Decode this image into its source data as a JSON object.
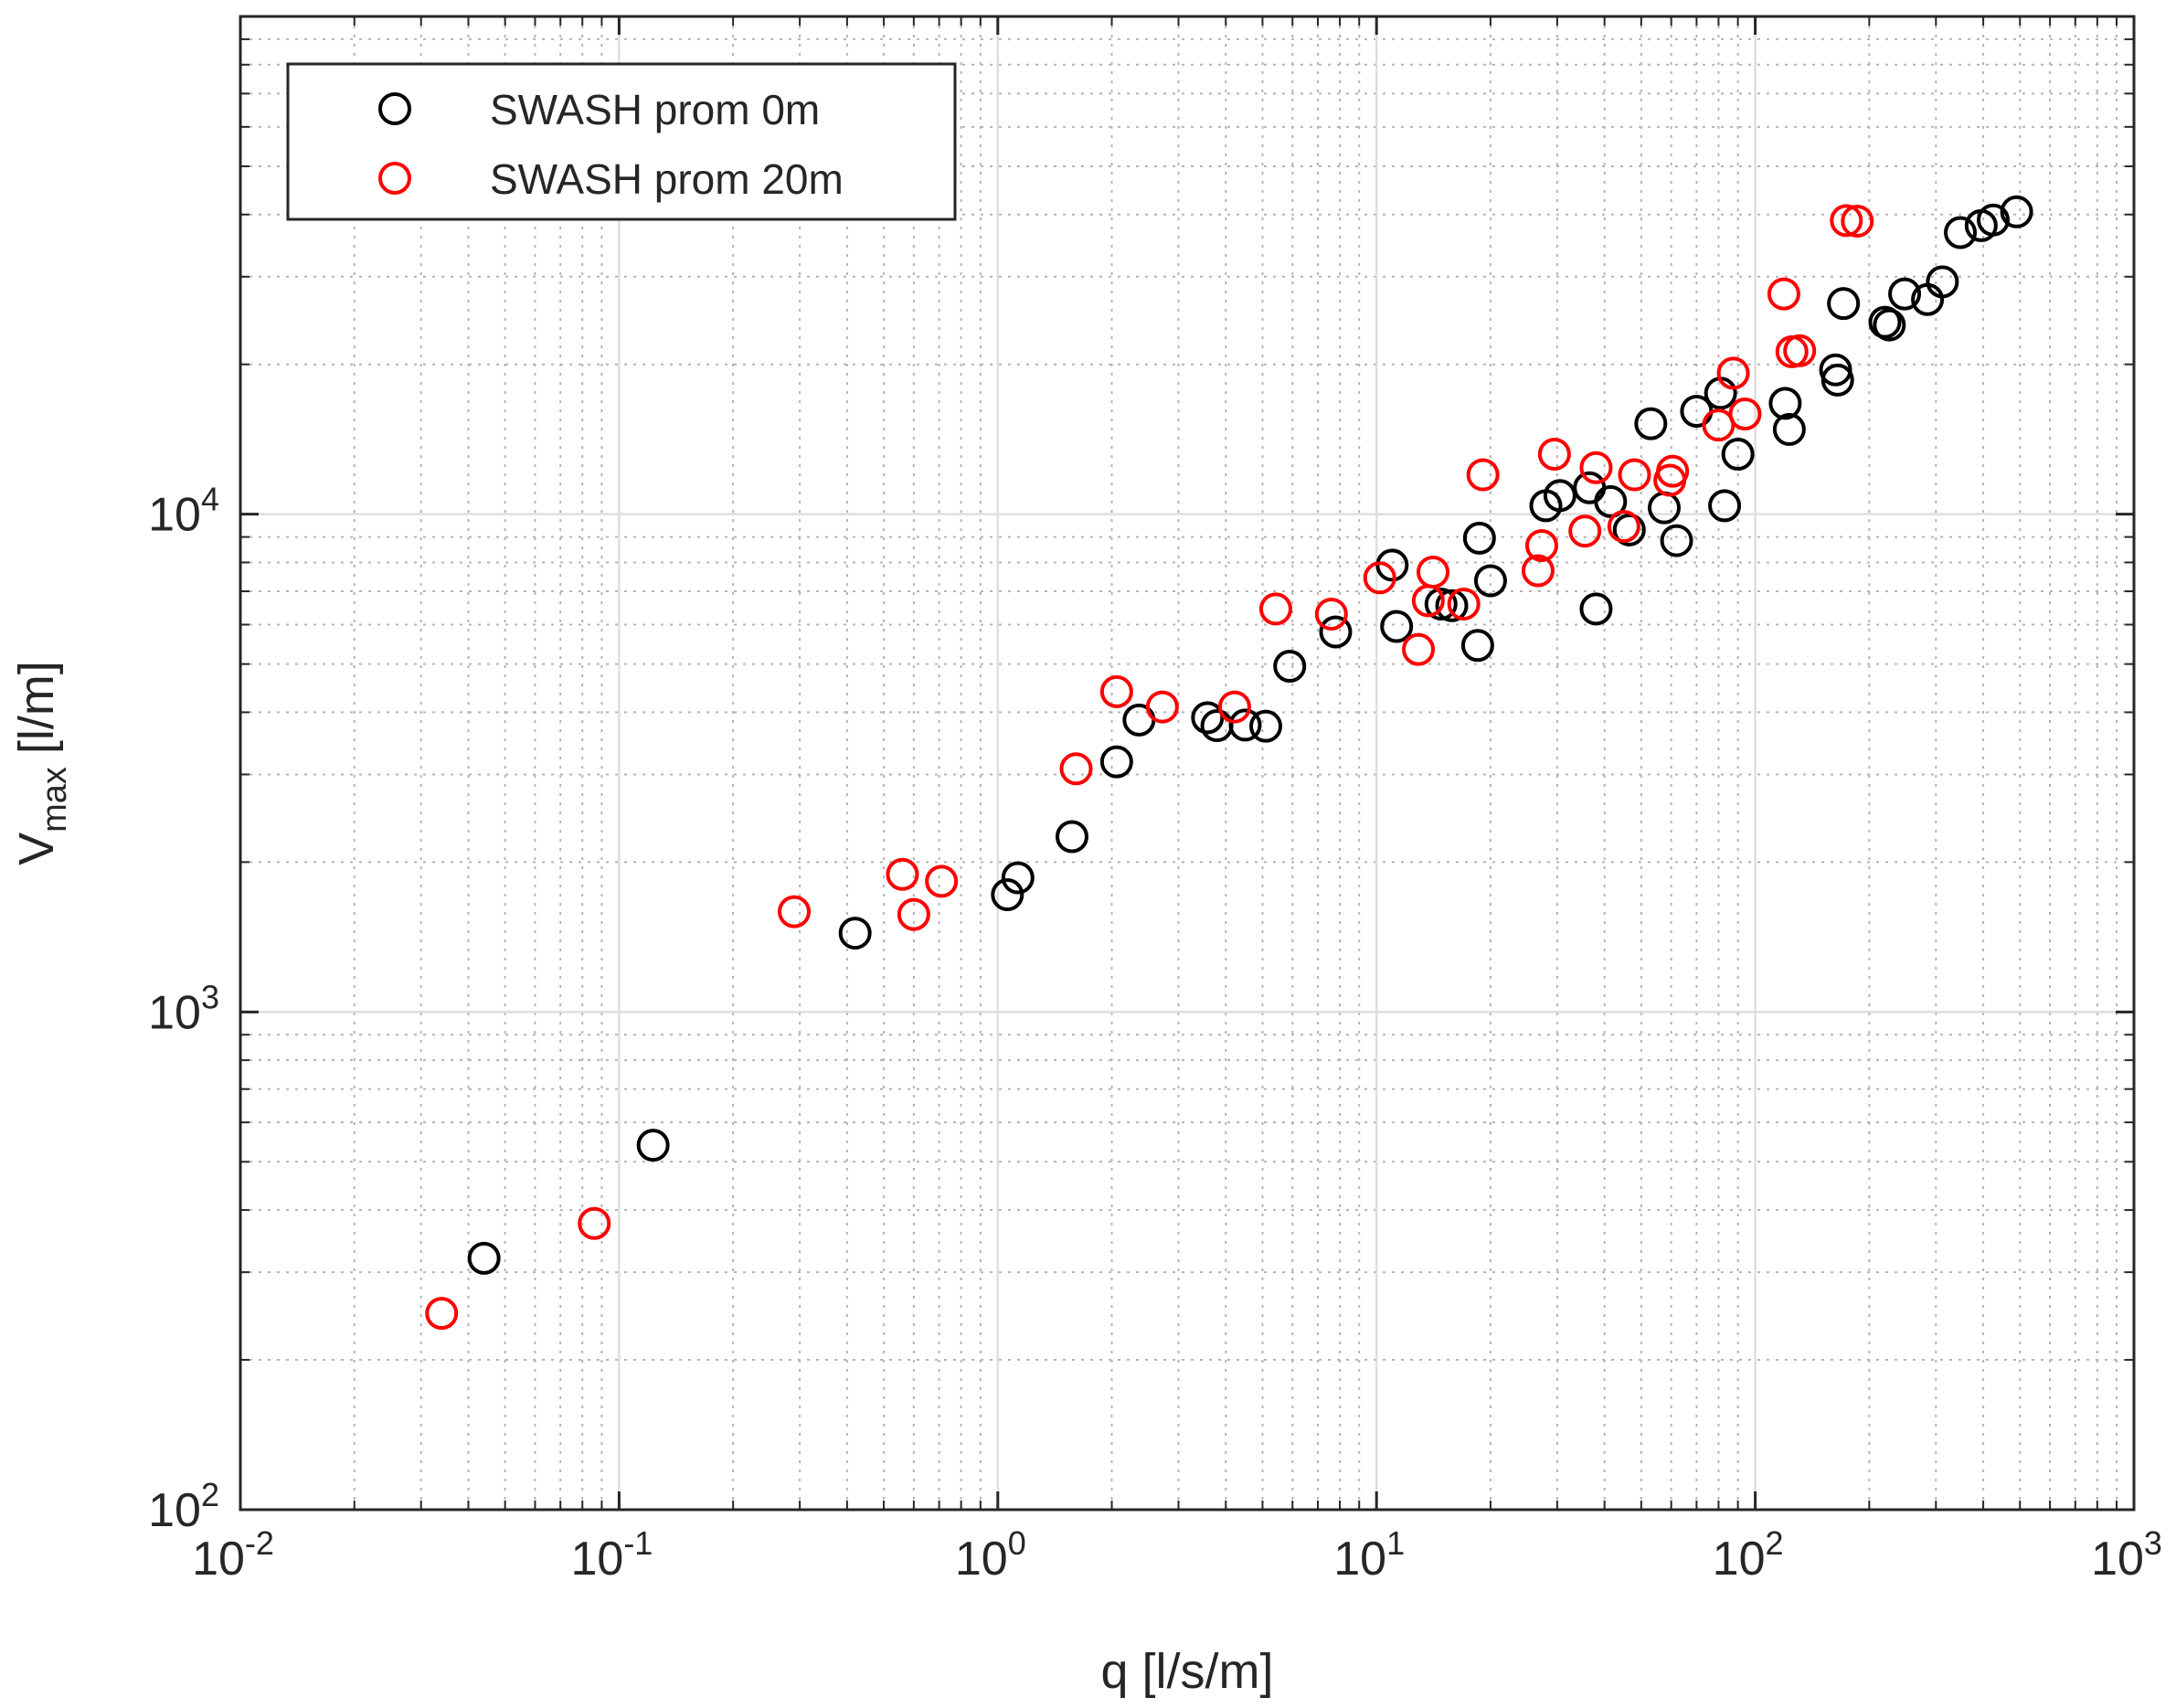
{
  "chart_data": {
    "type": "scatter",
    "title": "",
    "xlabel": "q [l/s/m]",
    "ylabel_main": "V",
    "ylabel_sub": "max",
    "ylabel_unit": "[l/m]",
    "xscale": "log",
    "yscale": "log",
    "xlim": [
      0.01,
      1000
    ],
    "ylim": [
      100,
      100000
    ],
    "grid": true,
    "legend_location": "top-left",
    "x_ticks": [
      {
        "base": "10",
        "exp": "-2"
      },
      {
        "base": "10",
        "exp": "-1"
      },
      {
        "base": "10",
        "exp": "0"
      },
      {
        "base": "10",
        "exp": "1"
      },
      {
        "base": "10",
        "exp": "2"
      },
      {
        "base": "10",
        "exp": "3"
      }
    ],
    "y_ticks": [
      {
        "base": "10",
        "exp": "2"
      },
      {
        "base": "10",
        "exp": "3"
      },
      {
        "base": "10",
        "exp": "4"
      }
    ],
    "series": [
      {
        "name": "SWASH prom 0m",
        "color": "#000000",
        "marker": "circle",
        "points": [
          [
            0.044,
            320
          ],
          [
            0.123,
            540
          ],
          [
            0.42,
            1440
          ],
          [
            1.06,
            1720
          ],
          [
            1.13,
            1860
          ],
          [
            1.57,
            2250
          ],
          [
            2.06,
            3180
          ],
          [
            2.36,
            3860
          ],
          [
            3.58,
            3900
          ],
          [
            3.79,
            3760
          ],
          [
            4.5,
            3770
          ],
          [
            5.1,
            3750
          ],
          [
            5.9,
            4950
          ],
          [
            7.8,
            5800
          ],
          [
            11.0,
            7900
          ],
          [
            11.3,
            5950
          ],
          [
            14.8,
            6600
          ],
          [
            15.8,
            6550
          ],
          [
            18.5,
            5450
          ],
          [
            18.7,
            8950
          ],
          [
            20.0,
            7350
          ],
          [
            28.0,
            10400
          ],
          [
            30.5,
            10900
          ],
          [
            36.5,
            11300
          ],
          [
            38.0,
            6450
          ],
          [
            41.5,
            10600
          ],
          [
            46.5,
            9300
          ],
          [
            53.0,
            15200
          ],
          [
            57.5,
            10300
          ],
          [
            62.0,
            8850
          ],
          [
            70.0,
            16100
          ],
          [
            81.0,
            17500
          ],
          [
            83.0,
            10400
          ],
          [
            90.0,
            13200
          ],
          [
            120.0,
            16700
          ],
          [
            123.0,
            14800
          ],
          [
            163.0,
            19500
          ],
          [
            165.0,
            18600
          ],
          [
            171.0,
            26500
          ],
          [
            220.0,
            24300
          ],
          [
            226.0,
            24000
          ],
          [
            248.0,
            27700
          ],
          [
            285.0,
            27000
          ],
          [
            312.0,
            29300
          ],
          [
            348.0,
            36800
          ],
          [
            395.0,
            38000
          ],
          [
            425.0,
            39000
          ],
          [
            490.0,
            40500
          ]
        ]
      },
      {
        "name": "SWASH prom 20m",
        "color": "#ff0000",
        "marker": "circle",
        "points": [
          [
            0.034,
            248
          ],
          [
            0.086,
            376
          ],
          [
            0.29,
            1590
          ],
          [
            0.56,
            1890
          ],
          [
            0.6,
            1570
          ],
          [
            0.71,
            1830
          ],
          [
            1.61,
            3080
          ],
          [
            2.06,
            4400
          ],
          [
            2.72,
            4100
          ],
          [
            4.22,
            4100
          ],
          [
            5.42,
            6450
          ],
          [
            7.6,
            6300
          ],
          [
            10.2,
            7450
          ],
          [
            12.9,
            5350
          ],
          [
            13.7,
            6700
          ],
          [
            14.1,
            7650
          ],
          [
            17.0,
            6600
          ],
          [
            19.1,
            12000
          ],
          [
            26.7,
            7700
          ],
          [
            27.3,
            8650
          ],
          [
            29.5,
            13200
          ],
          [
            35.5,
            9250
          ],
          [
            38.0,
            12400
          ],
          [
            45.0,
            9450
          ],
          [
            48.0,
            12000
          ],
          [
            59.5,
            11700
          ],
          [
            60.5,
            12200
          ],
          [
            80.0,
            15100
          ],
          [
            87.5,
            19200
          ],
          [
            94.0,
            15900
          ],
          [
            119.0,
            27700
          ],
          [
            125.0,
            21200
          ],
          [
            131.0,
            21300
          ],
          [
            174.0,
            38900
          ],
          [
            186.0,
            38800
          ]
        ]
      }
    ]
  }
}
